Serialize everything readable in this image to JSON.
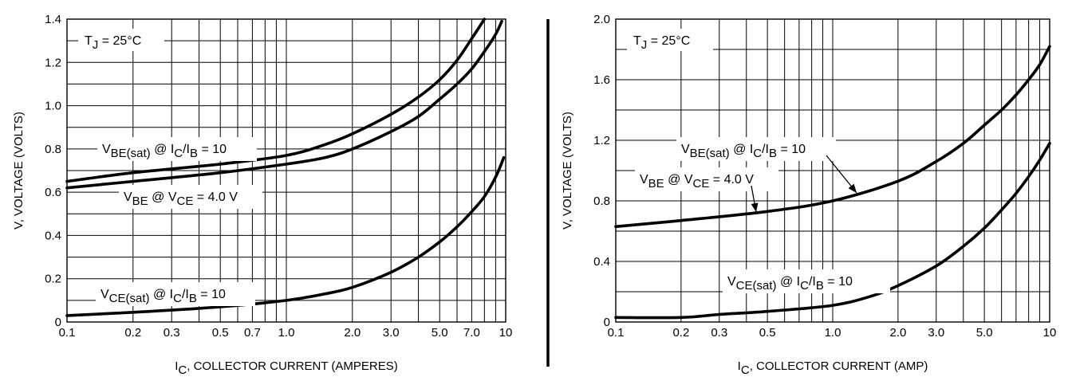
{
  "chart_data": [
    {
      "type": "line",
      "x_scale": "log",
      "xlim": [
        0.1,
        10
      ],
      "ylim": [
        0,
        1.4
      ],
      "x_ticks": [
        "0.1",
        "0.2",
        "0.3",
        "0.5",
        "0.7",
        "1.0",
        "2.0",
        "3.0",
        "5.0",
        "7.0",
        "10"
      ],
      "y_ticks": [
        "0",
        "0.2",
        "0.4",
        "0.6",
        "0.8",
        "1.0",
        "1.2",
        "1.4"
      ],
      "xlabel": {
        "pre": "I",
        "sub": "C",
        "post": ", COLLECTOR CURRENT (AMPERES)"
      },
      "ylabel": "V, VOLTAGE (VOLTS)",
      "grid": true,
      "annotation": {
        "pre": "T",
        "sub": "J",
        "post": " = 25°C"
      },
      "series": [
        {
          "name": {
            "a": "V",
            "b": "BE(sat)",
            "c": " @ I",
            "d": "C",
            "e": "/I",
            "f": "B",
            "g": " = 10"
          },
          "x": [
            0.1,
            0.2,
            0.5,
            1.0,
            1.5,
            2.0,
            3.0,
            4.0,
            5.0,
            6.0,
            7.0,
            8.0
          ],
          "y": [
            0.65,
            0.69,
            0.73,
            0.77,
            0.82,
            0.87,
            0.96,
            1.04,
            1.12,
            1.21,
            1.31,
            1.4
          ]
        },
        {
          "name": {
            "a": "V",
            "b": "BE",
            "c": " @ V",
            "d": "CE",
            "e": " = 4.0 V",
            "f": "",
            "g": ""
          },
          "x": [
            0.1,
            0.2,
            0.5,
            1.0,
            1.5,
            2.0,
            3.0,
            4.0,
            5.0,
            6.0,
            7.0,
            8.0,
            9.0,
            9.6
          ],
          "y": [
            0.62,
            0.65,
            0.69,
            0.73,
            0.76,
            0.8,
            0.88,
            0.95,
            1.03,
            1.1,
            1.17,
            1.25,
            1.33,
            1.39
          ]
        },
        {
          "name": {
            "a": "V",
            "b": "CE(sat)",
            "c": " @ I",
            "d": "C",
            "e": "/I",
            "f": "B",
            "g": " = 10"
          },
          "x": [
            0.1,
            0.2,
            0.5,
            1.0,
            1.5,
            2.0,
            3.0,
            4.0,
            5.0,
            6.0,
            7.0,
            8.0,
            9.0,
            9.8
          ],
          "y": [
            0.03,
            0.045,
            0.07,
            0.1,
            0.13,
            0.16,
            0.23,
            0.3,
            0.37,
            0.44,
            0.51,
            0.58,
            0.67,
            0.76
          ]
        }
      ]
    },
    {
      "type": "line",
      "x_scale": "log",
      "xlim": [
        0.1,
        10
      ],
      "ylim": [
        0,
        2.0
      ],
      "x_ticks": [
        "0.1",
        "0.2",
        "0.3",
        "0.5",
        "1.0",
        "2.0",
        "3.0",
        "5.0",
        "10"
      ],
      "y_ticks": [
        "0",
        "0.4",
        "0.8",
        "1.2",
        "1.6",
        "2.0"
      ],
      "xlabel": {
        "pre": "I",
        "sub": "C",
        "post": ", COLLECTOR CURRENT (AMP)"
      },
      "ylabel": "V, VOLTAGE (VOLTS)",
      "grid": true,
      "annotation": {
        "pre": "T",
        "sub": "J",
        "post": " = 25°C"
      },
      "series": [
        {
          "name": {
            "a": "V",
            "b": "BE(sat)",
            "c": " @ I",
            "d": "C",
            "e": "/I",
            "f": "B",
            "g": " = 10"
          },
          "x": [
            0.1,
            0.2,
            0.5,
            1.0,
            2.0,
            3.0,
            4.0,
            5.0,
            6.0,
            7.0,
            8.0,
            9.0,
            10.0
          ],
          "y": [
            0.63,
            0.67,
            0.73,
            0.8,
            0.93,
            1.06,
            1.18,
            1.3,
            1.4,
            1.5,
            1.6,
            1.7,
            1.82
          ]
        },
        {
          "name": {
            "a": "V",
            "b": "BE",
            "c": " @ V",
            "d": "CE",
            "e": " = 4.0 V",
            "f": "",
            "g": ""
          },
          "x": [],
          "y": []
        },
        {
          "name": {
            "a": "V",
            "b": "CE(sat)",
            "c": " @ I",
            "d": "C",
            "e": "/I",
            "f": "B",
            "g": " = 10"
          },
          "x": [
            0.1,
            0.2,
            0.3,
            0.5,
            1.0,
            1.5,
            2.0,
            3.0,
            4.0,
            5.0,
            6.0,
            7.0,
            8.0,
            9.0,
            10.0
          ],
          "y": [
            0.03,
            0.03,
            0.05,
            0.07,
            0.11,
            0.17,
            0.24,
            0.37,
            0.5,
            0.62,
            0.74,
            0.85,
            0.96,
            1.07,
            1.18
          ]
        }
      ]
    }
  ]
}
